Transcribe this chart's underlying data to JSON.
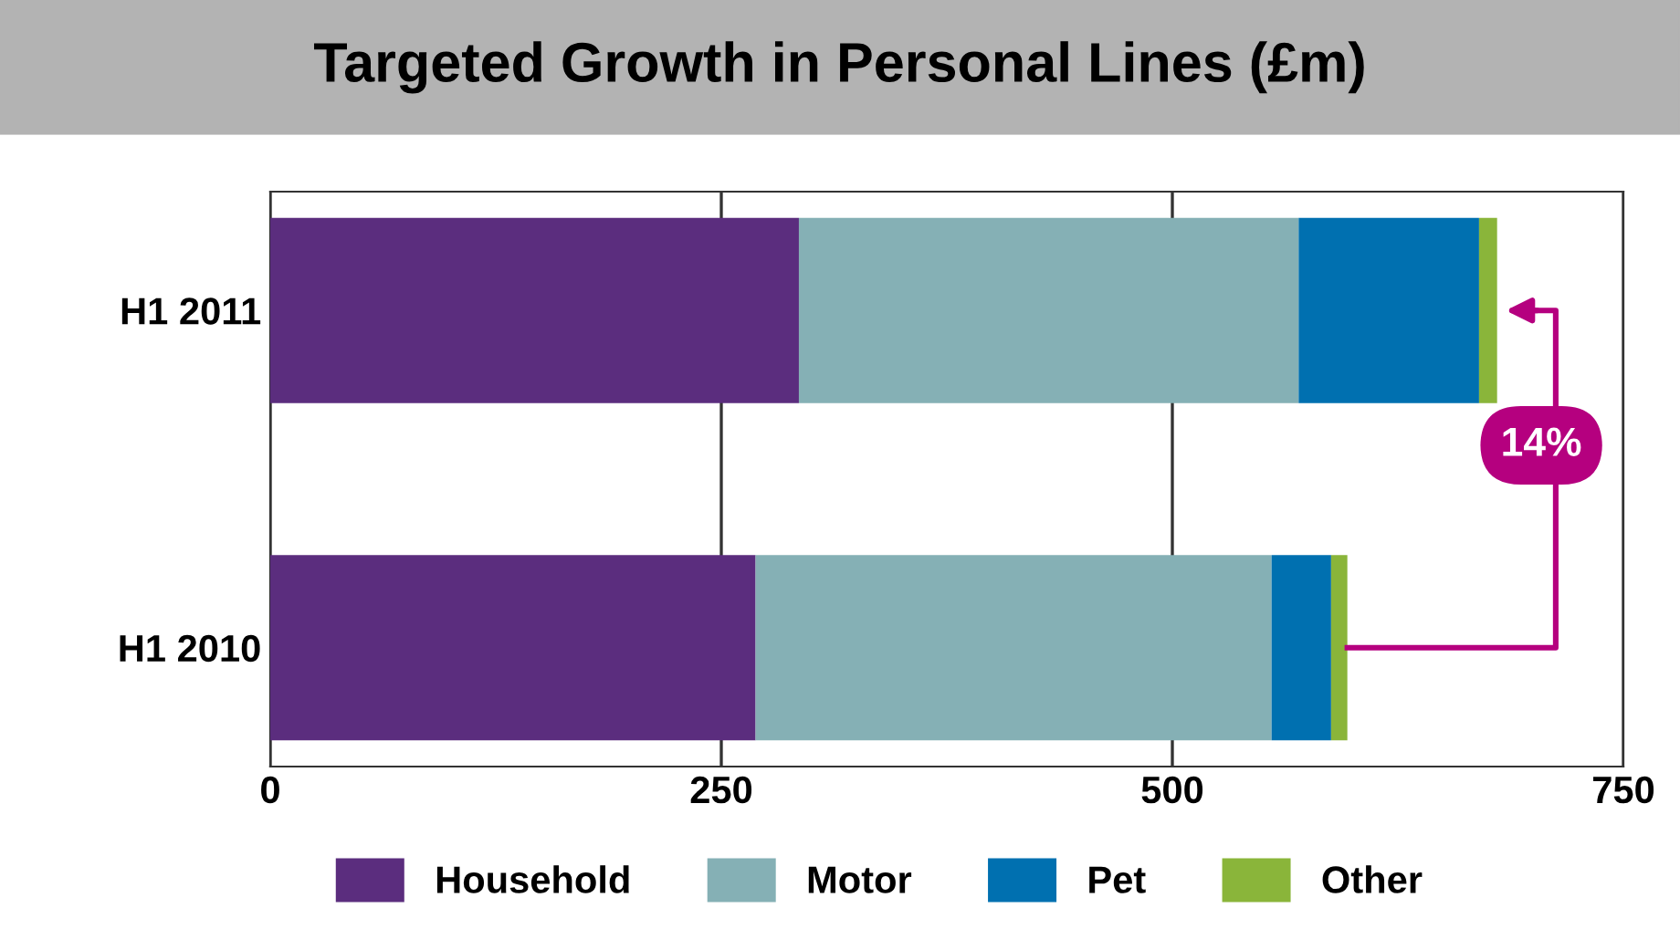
{
  "chart_data": {
    "type": "bar",
    "orientation": "horizontal",
    "stacked": true,
    "title": "Targeted Growth in Personal Lines (£m)",
    "categories": [
      "H1 2011",
      "H1 2010"
    ],
    "series": [
      {
        "name": "Household",
        "color": "#5b2d7e",
        "values": [
          293,
          269
        ]
      },
      {
        "name": "Motor",
        "color": "#85b0b5",
        "values": [
          277,
          286
        ]
      },
      {
        "name": "Pet",
        "color": "#0070b0",
        "values": [
          100,
          33
        ]
      },
      {
        "name": "Other",
        "color": "#8ab53a",
        "values": [
          10,
          9
        ]
      }
    ],
    "xlim": [
      0,
      750
    ],
    "xticks": [
      0,
      250,
      500,
      750
    ],
    "grid": "x",
    "legend": "bottom",
    "annotations": [
      "14%"
    ]
  }
}
